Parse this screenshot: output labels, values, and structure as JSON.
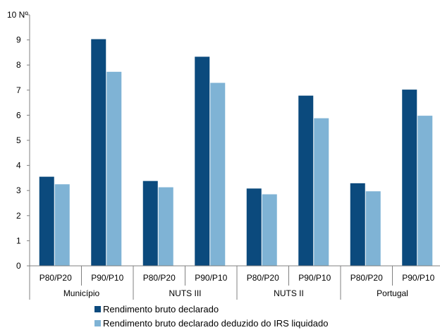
{
  "chart_data": {
    "type": "bar",
    "y_unit_label": "Nº",
    "ylim": [
      0,
      10
    ],
    "yticks": [
      0,
      1,
      2,
      3,
      4,
      5,
      6,
      7,
      8,
      9,
      10
    ],
    "grid": false,
    "legend_position": "bottom",
    "groups": [
      {
        "label": "Município",
        "categories": [
          "P80/P20",
          "P90/P10"
        ]
      },
      {
        "label": "NUTS III",
        "categories": [
          "P80/P20",
          "P90/P10"
        ]
      },
      {
        "label": "NUTS II",
        "categories": [
          "P80/P20",
          "P90/P10"
        ]
      },
      {
        "label": "Portugal",
        "categories": [
          "P80/P20",
          "P90/P10"
        ]
      }
    ],
    "series": [
      {
        "name": "Rendimento bruto declarado",
        "color": "#0b4a7d",
        "values": [
          3.55,
          9.03,
          3.38,
          8.33,
          3.08,
          6.78,
          3.29,
          7.02
        ]
      },
      {
        "name": "Rendimento bruto declarado deduzido do IRS liquidado",
        "color": "#7fb3d5",
        "values": [
          3.25,
          7.73,
          3.13,
          7.29,
          2.85,
          5.88,
          2.97,
          5.98
        ]
      }
    ]
  }
}
